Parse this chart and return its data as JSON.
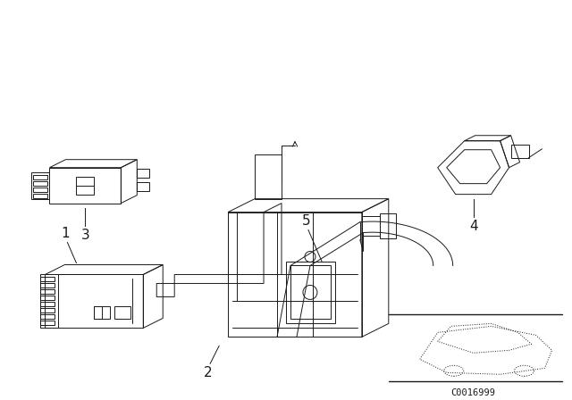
{
  "bg_color": "#ffffff",
  "line_color": "#1a1a1a",
  "fig_width": 6.4,
  "fig_height": 4.48,
  "dpi": 100,
  "catalog_code": "C0016999",
  "lw": 0.7
}
